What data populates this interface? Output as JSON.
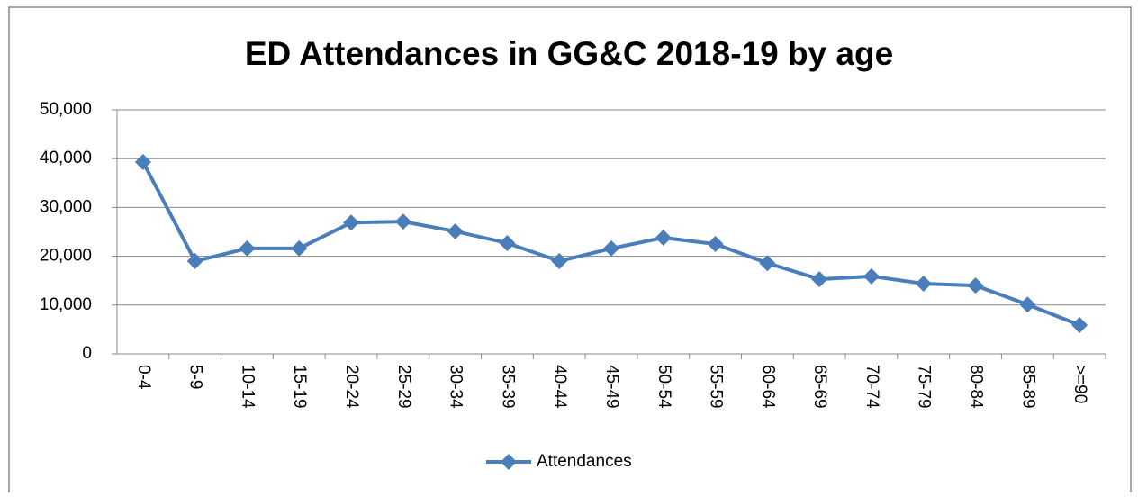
{
  "chart_data": {
    "type": "line",
    "title": "ED Attendances in GG&C 2018-19 by age",
    "categories": [
      "0-4",
      "5-9",
      "10-14",
      "15-19",
      "20-24",
      "25-29",
      "30-34",
      "35-39",
      "40-44",
      "45-49",
      "50-54",
      "55-59",
      "60-64",
      "65-69",
      "70-74",
      "75-79",
      "80-84",
      "85-89",
      ">=90"
    ],
    "series": [
      {
        "name": "Attendances",
        "color": "#4a7ebb",
        "values": [
          39300,
          19000,
          21600,
          21600,
          26900,
          27100,
          25100,
          22700,
          19000,
          21600,
          23800,
          22500,
          18600,
          15300,
          15900,
          14400,
          14000,
          10100,
          5900
        ]
      }
    ],
    "ylim": [
      0,
      50000
    ],
    "yticks": [
      0,
      {
        "value": 10000,
        "label": "10,000"
      },
      {
        "value": 20000,
        "label": "20,000"
      },
      {
        "value": 30000,
        "label": "30,000"
      },
      {
        "value": 40000,
        "label": "40,000"
      },
      {
        "value": 50000,
        "label": "50,000"
      }
    ],
    "grid": true,
    "legend": "bottom"
  }
}
